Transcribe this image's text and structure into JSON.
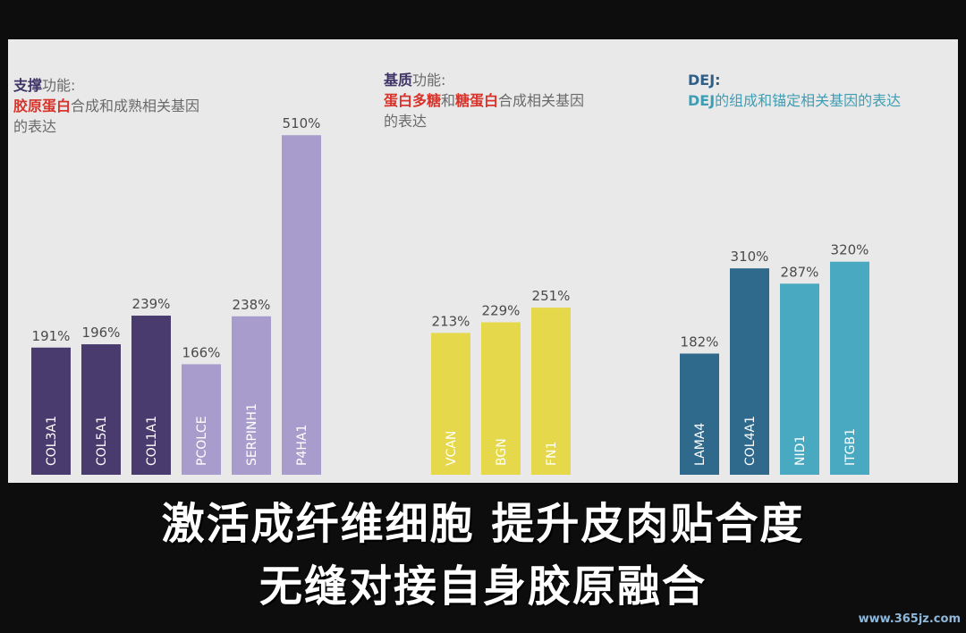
{
  "groups": [
    {
      "title_bold": "支撑",
      "title_rest": "功能:",
      "desc_highlight": "胶原蛋白",
      "desc_rest": "合成和成熟相关基因",
      "desc_line2": "的表达"
    },
    {
      "title_bold": "基质",
      "title_rest": "功能:",
      "desc_highlight_1": "蛋白多糖",
      "desc_mid": "和",
      "desc_highlight_2": "糖蛋白",
      "desc_rest": "合成相关基因",
      "desc_line2": "的表达"
    },
    {
      "title": "DEJ:",
      "desc_highlight": "DEJ",
      "desc_rest": "的组成和锚定相关基因的表达"
    }
  ],
  "chart_data": {
    "type": "bar",
    "ylim": [
      0,
      560
    ],
    "bars": [
      {
        "gene": "COL3A1",
        "value": 191,
        "label": "191%",
        "color": "#4a3b6f",
        "group": 0
      },
      {
        "gene": "COL5A1",
        "value": 196,
        "label": "196%",
        "color": "#4a3b6f",
        "group": 0
      },
      {
        "gene": "COL1A1",
        "value": 239,
        "label": "239%",
        "color": "#4a3b6f",
        "group": 0
      },
      {
        "gene": "PCOLCE",
        "value": 166,
        "label": "166%",
        "color": "#a79ccc",
        "group": 0
      },
      {
        "gene": "SERPINH1",
        "value": 238,
        "label": "238%",
        "color": "#a79ccc",
        "group": 0
      },
      {
        "gene": "P4HA1",
        "value": 510,
        "label": "510%",
        "color": "#a79ccc",
        "group": 0
      },
      {
        "gene": "VCAN",
        "value": 213,
        "label": "213%",
        "color": "#e5d84a",
        "group": 1
      },
      {
        "gene": "BGN",
        "value": 229,
        "label": "229%",
        "color": "#e5d84a",
        "group": 1
      },
      {
        "gene": "FN1",
        "value": 251,
        "label": "251%",
        "color": "#e5d84a",
        "group": 1
      },
      {
        "gene": "LAMA4",
        "value": 182,
        "label": "182%",
        "color": "#2f6a8c",
        "group": 2
      },
      {
        "gene": "COL4A1",
        "value": 310,
        "label": "310%",
        "color": "#2f6a8c",
        "group": 2
      },
      {
        "gene": "NID1",
        "value": 287,
        "label": "287%",
        "color": "#48a9c1",
        "group": 2
      },
      {
        "gene": "ITGB1",
        "value": 320,
        "label": "320%",
        "color": "#48a9c1",
        "group": 2
      }
    ]
  },
  "caption": {
    "line1": "激活成纤维细胞  提升皮肉贴合度",
    "line2": "无缝对接自身胶原融合"
  },
  "watermark": "www.365jz.com"
}
